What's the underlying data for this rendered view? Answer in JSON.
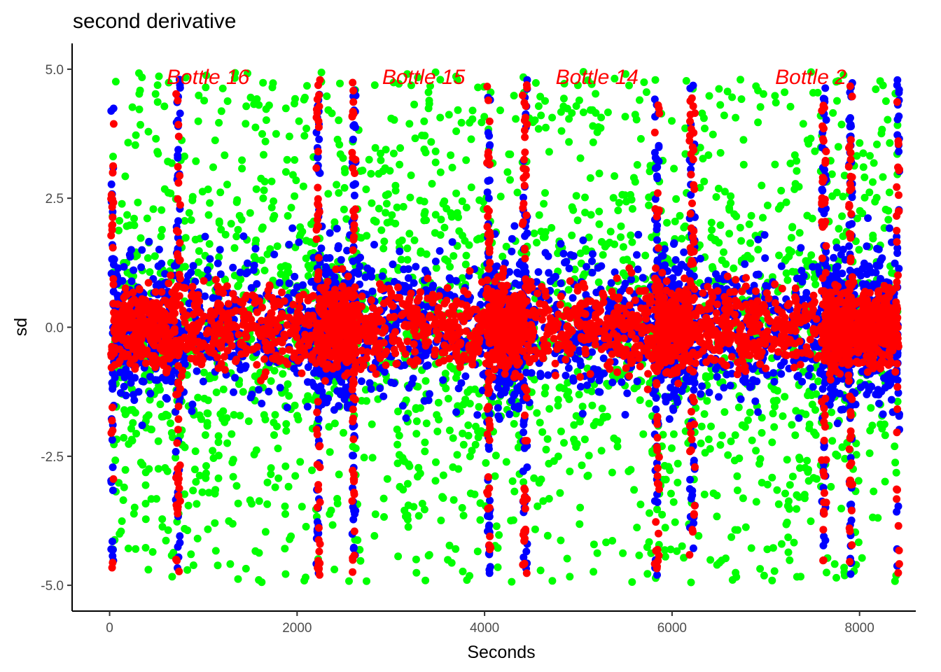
{
  "chart_data": {
    "type": "scatter",
    "title": "second derivative",
    "xlabel": "Seconds",
    "ylabel": "sd",
    "xlim": [
      -400,
      8600
    ],
    "ylim": [
      -5.5,
      5.5
    ],
    "x_ticks": [
      0,
      2000,
      4000,
      6000,
      8000
    ],
    "x_tick_labels": [
      "0",
      "2000",
      "4000",
      "6000",
      "8000"
    ],
    "y_ticks": [
      -5.0,
      -2.5,
      0.0,
      2.5,
      5.0
    ],
    "y_tick_labels": [
      "-5.0",
      "-2.5",
      "0.0",
      "2.5",
      "5.0"
    ],
    "grid": false,
    "legend": "none",
    "series": [
      {
        "color": "#00ff00",
        "note_pattern": "noise spanning full range",
        "spread": 5.0
      },
      {
        "color": "#0000ff",
        "spread": 1.6
      },
      {
        "color": "#ff0000",
        "spread": 0.9
      }
    ],
    "annotations": [
      {
        "text": "Bottle 16",
        "x": 1050,
        "y": 4.85,
        "color": "#ff0000"
      },
      {
        "text": "Bottle 15",
        "x": 3350,
        "y": 4.85,
        "color": "#ff0000"
      },
      {
        "text": "Bottle 14",
        "x": 5200,
        "y": 4.85,
        "color": "#ff0000"
      },
      {
        "text": "Bottle 2",
        "x": 7480,
        "y": 4.85,
        "color": "#ff0000"
      }
    ],
    "segments": [
      {
        "start": 30,
        "end": 720
      },
      {
        "start": 740,
        "end": 2220
      },
      {
        "start": 2230,
        "end": 2600
      },
      {
        "start": 2610,
        "end": 4040
      },
      {
        "start": 4050,
        "end": 4420
      },
      {
        "start": 4440,
        "end": 5830
      },
      {
        "start": 5850,
        "end": 6200
      },
      {
        "start": 6230,
        "end": 7610
      },
      {
        "start": 7630,
        "end": 7900
      },
      {
        "start": 7910,
        "end": 8410
      }
    ]
  }
}
